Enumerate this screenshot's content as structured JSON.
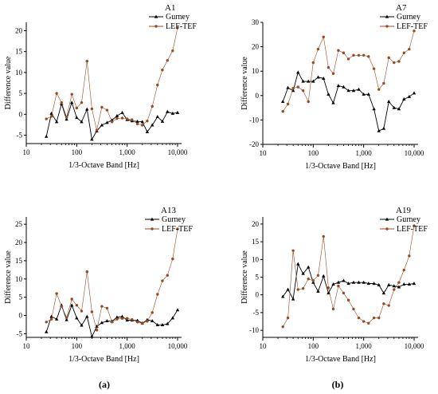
{
  "figure": {
    "captions": [
      "(a)",
      "(b)"
    ]
  },
  "chart_data": [
    {
      "id": "A1",
      "type": "line",
      "title": "A1",
      "xlabel": "1/3-Octave Band [Hz]",
      "ylabel": "Difference value",
      "xscale": "log",
      "xlim": [
        10,
        12000
      ],
      "ylim": [
        -7,
        22
      ],
      "xticks": [
        10,
        100,
        1000,
        10000
      ],
      "xtick_labels": [
        "10",
        "100",
        "1,000",
        "10,000"
      ],
      "yticks": [
        -5,
        0,
        5,
        10,
        15,
        20
      ],
      "ytick_labels": [
        "-5",
        "0",
        "5",
        "10",
        "15",
        "20"
      ],
      "legend_position": "top-right",
      "x": [
        25,
        31.5,
        40,
        50,
        63,
        80,
        100,
        125,
        160,
        200,
        250,
        315,
        400,
        500,
        630,
        800,
        1000,
        1250,
        1600,
        2000,
        2500,
        3150,
        4000,
        5000,
        6300,
        8000,
        10000
      ],
      "series": [
        {
          "name": "Gurney",
          "color": "#000000",
          "marker": "triangle",
          "values": [
            -5.3,
            0.2,
            -1.8,
            2.5,
            -1.2,
            2.8,
            -0.8,
            -1.8,
            1.2,
            -6.0,
            -4.0,
            -2.6,
            -2.0,
            -1.4,
            -0.4,
            0.4,
            -1.3,
            -1.6,
            -1.7,
            -1.8,
            -4.2,
            -2.6,
            -0.6,
            -1.7,
            0.6,
            0.2,
            0.4
          ]
        },
        {
          "name": "LEF-TEF",
          "color": "#9a4a22",
          "marker": "circle",
          "values": [
            -1.1,
            -0.5,
            5.0,
            2.8,
            -0.7,
            4.8,
            1.5,
            2.8,
            12.7,
            1.3,
            -3.8,
            1.7,
            1.0,
            -1.8,
            -1.0,
            -0.9,
            -1.1,
            -1.3,
            -2.3,
            -2.6,
            -1.6,
            1.9,
            7.0,
            10.6,
            12.9,
            15.2,
            20.7
          ]
        }
      ]
    },
    {
      "id": "A7",
      "type": "line",
      "title": "A7",
      "xlabel": "1/3-Octave Band [Hz]",
      "ylabel": "Difference value",
      "xscale": "log",
      "xlim": [
        10,
        12000
      ],
      "ylim": [
        -20,
        30
      ],
      "xticks": [
        10,
        100,
        1000,
        10000
      ],
      "xtick_labels": [
        "10",
        "100",
        "1,000",
        "10,000"
      ],
      "yticks": [
        -20,
        -10,
        0,
        10,
        20,
        30
      ],
      "ytick_labels": [
        "-20",
        "-10",
        "0",
        "10",
        "20",
        "30"
      ],
      "legend_position": "top-right",
      "x": [
        25,
        31.5,
        40,
        50,
        63,
        80,
        100,
        125,
        160,
        200,
        250,
        315,
        400,
        500,
        630,
        800,
        1000,
        1250,
        1600,
        2000,
        2500,
        3150,
        4000,
        5000,
        6300,
        8000,
        10000
      ],
      "series": [
        {
          "name": "Gurney",
          "color": "#000000",
          "marker": "triangle",
          "values": [
            -2.5,
            3.2,
            2.0,
            9.5,
            5.8,
            5.8,
            5.8,
            7.5,
            7.0,
            0.5,
            -3.0,
            4.0,
            3.5,
            2.0,
            2.0,
            2.5,
            0.5,
            0.5,
            -5.5,
            -14.5,
            -13.5,
            -2.5,
            -5.0,
            -5.5,
            -1.5,
            -0.5,
            1.0
          ]
        },
        {
          "name": "LEF-TEF",
          "color": "#9a4a22",
          "marker": "circle",
          "values": [
            -6.5,
            -3.5,
            3.0,
            3.5,
            2.0,
            -2.5,
            13.5,
            19.0,
            24.0,
            11.5,
            9.0,
            18.5,
            17.5,
            15.0,
            16.5,
            16.5,
            16.5,
            16.0,
            11.0,
            2.5,
            5.0,
            15.5,
            13.5,
            14.0,
            17.5,
            19.0,
            26.5
          ]
        }
      ]
    },
    {
      "id": "A13",
      "type": "line",
      "title": "A13",
      "xlabel": "1/3-Octave Band [Hz]",
      "ylabel": "Difference value",
      "xscale": "log",
      "xlim": [
        10,
        12000
      ],
      "ylim": [
        -6,
        27
      ],
      "xticks": [
        10,
        100,
        1000,
        10000
      ],
      "xtick_labels": [
        "10",
        "100",
        "1,000",
        "10,000"
      ],
      "yticks": [
        -5,
        0,
        5,
        10,
        15,
        20,
        25
      ],
      "ytick_labels": [
        "-5",
        "0",
        "5",
        "10",
        "15",
        "20",
        "25"
      ],
      "legend_position": "top-right",
      "x": [
        25,
        31.5,
        40,
        50,
        63,
        80,
        100,
        125,
        160,
        200,
        250,
        315,
        400,
        500,
        630,
        800,
        1000,
        1250,
        1600,
        2000,
        2500,
        3150,
        4000,
        5000,
        6300,
        8000,
        10000
      ],
      "series": [
        {
          "name": "Gurney",
          "color": "#000000",
          "marker": "triangle",
          "values": [
            -4.5,
            -0.3,
            -1.0,
            2.8,
            -1.2,
            2.8,
            -0.7,
            -2.7,
            -0.3,
            -5.8,
            -3.0,
            -2.0,
            -1.5,
            -1.6,
            -0.5,
            -0.3,
            -1.3,
            -1.3,
            -1.4,
            -2.1,
            -1.2,
            -1.5,
            -2.6,
            -2.6,
            -2.3,
            -0.7,
            1.5
          ]
        },
        {
          "name": "LEF-TEF",
          "color": "#9a4a22",
          "marker": "circle",
          "values": [
            -1.8,
            -1.0,
            6.0,
            2.5,
            -0.6,
            4.5,
            2.8,
            1.2,
            12.0,
            1.0,
            -4.0,
            2.5,
            2.0,
            -1.8,
            -1.0,
            -0.8,
            -0.8,
            -1.1,
            -1.8,
            -2.2,
            -1.6,
            0.8,
            5.8,
            9.5,
            11.0,
            15.5,
            23.7
          ]
        }
      ]
    },
    {
      "id": "A19",
      "type": "line",
      "title": "A19",
      "xlabel": "1/3-Octave Band [Hz]",
      "ylabel": "Difference value",
      "xscale": "log",
      "xlim": [
        10,
        12000
      ],
      "ylim": [
        -12,
        22
      ],
      "xticks": [
        10,
        100,
        1000,
        10000
      ],
      "xtick_labels": [
        "10",
        "100",
        "1,000",
        "10,000"
      ],
      "yticks": [
        -10,
        -5,
        0,
        5,
        10,
        15,
        20
      ],
      "ytick_labels": [
        "-10",
        "-5",
        "0",
        "5",
        "10",
        "15",
        "20"
      ],
      "legend_position": "top-right",
      "x": [
        25,
        31.5,
        40,
        50,
        63,
        80,
        100,
        125,
        160,
        200,
        250,
        315,
        400,
        500,
        630,
        800,
        1000,
        1250,
        1600,
        2000,
        2500,
        3150,
        4000,
        5000,
        6300,
        8000,
        10000
      ],
      "series": [
        {
          "name": "Gurney",
          "color": "#000000",
          "marker": "triangle",
          "values": [
            -0.5,
            1.5,
            -1.2,
            8.7,
            6.0,
            7.8,
            3.5,
            1.0,
            5.3,
            0.5,
            3.0,
            3.5,
            4.0,
            3.2,
            3.5,
            3.5,
            3.5,
            3.2,
            3.2,
            2.8,
            0.5,
            2.8,
            2.5,
            2.2,
            3.0,
            3.0,
            3.2
          ]
        },
        {
          "name": "LEF-TEF",
          "color": "#9a4a22",
          "marker": "circle",
          "values": [
            -9.0,
            -6.5,
            12.5,
            1.5,
            1.8,
            4.5,
            4.0,
            5.5,
            16.5,
            2.0,
            -4.0,
            2.5,
            0.5,
            -1.5,
            -4.0,
            -6.5,
            -7.5,
            -8.0,
            -6.5,
            -6.5,
            -2.5,
            -3.0,
            1.5,
            3.5,
            7.0,
            11.0,
            19.5
          ]
        }
      ]
    }
  ]
}
